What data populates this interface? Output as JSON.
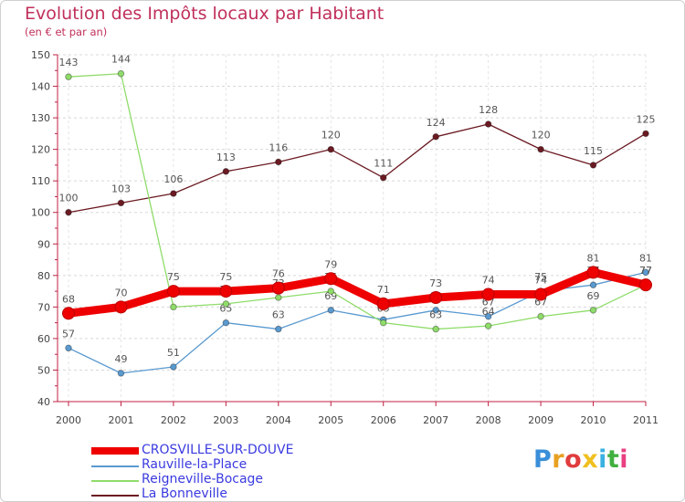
{
  "header": {
    "title": "Evolution des Impôts locaux par Habitant",
    "subtitle": "(en € et par an)"
  },
  "logo": {
    "text": "Proxiti",
    "colors": [
      "#3a8fd8",
      "#e8a020",
      "#e03c3c",
      "#f0c020",
      "#3ab0e0",
      "#40b040",
      "#e84080"
    ]
  },
  "chart_data": {
    "type": "line",
    "x": [
      "2000",
      "2001",
      "2002",
      "2003",
      "2004",
      "2005",
      "2006",
      "2007",
      "2008",
      "2009",
      "2010",
      "2011"
    ],
    "ylim": [
      40,
      150
    ],
    "yticks": [
      "40",
      "50",
      "60",
      "70",
      "80",
      "90",
      "100",
      "110",
      "120",
      "130",
      "140",
      "150"
    ],
    "grid": "horizontal dashed",
    "series": [
      {
        "name": "La Bonneville",
        "color": "#6b1a22",
        "values": [
          100,
          103,
          106,
          113,
          116,
          120,
          111,
          124,
          128,
          120,
          115,
          125
        ],
        "labels": [
          "100",
          "103",
          "106",
          "113",
          "116",
          "120",
          "111",
          "124",
          "128",
          "120",
          "115",
          "125"
        ]
      },
      {
        "name": "Rauville-la-Place",
        "color": "#5a9ad0",
        "values": [
          57,
          49,
          51,
          65,
          63,
          69,
          66,
          69,
          67,
          75,
          77,
          81
        ],
        "labels": [
          "57",
          "49",
          "51",
          "65",
          "63",
          "69",
          "66",
          "69",
          "67",
          "75",
          "77",
          "81"
        ]
      },
      {
        "name": "Reigneville-Bocage",
        "color": "#8fdc6a",
        "values": [
          143,
          144,
          70,
          71,
          73,
          75,
          65,
          63,
          64,
          67,
          69,
          77
        ],
        "labels": [
          "143",
          "144",
          "70",
          "71",
          "73",
          "75",
          "65",
          "63",
          "64",
          "67",
          "69",
          "77"
        ]
      },
      {
        "name": "CROSVILLE-SUR-DOUVE",
        "color": "#ee0000",
        "values": [
          68,
          70,
          75,
          75,
          76,
          79,
          71,
          73,
          74,
          74,
          81,
          77
        ],
        "labels": [
          "68",
          "70",
          "75",
          "75",
          "76",
          "79",
          "71",
          "73",
          "74",
          "74",
          "81",
          "77"
        ]
      }
    ]
  },
  "legend": [
    {
      "label": "CROSVILLE-SUR-DOUVE",
      "color": "#ee0000"
    },
    {
      "label": "Rauville-la-Place",
      "color": "#5a9ad0"
    },
    {
      "label": "Reigneville-Bocage",
      "color": "#8fdc6a"
    },
    {
      "label": "La Bonneville",
      "color": "#6b1a22"
    }
  ]
}
